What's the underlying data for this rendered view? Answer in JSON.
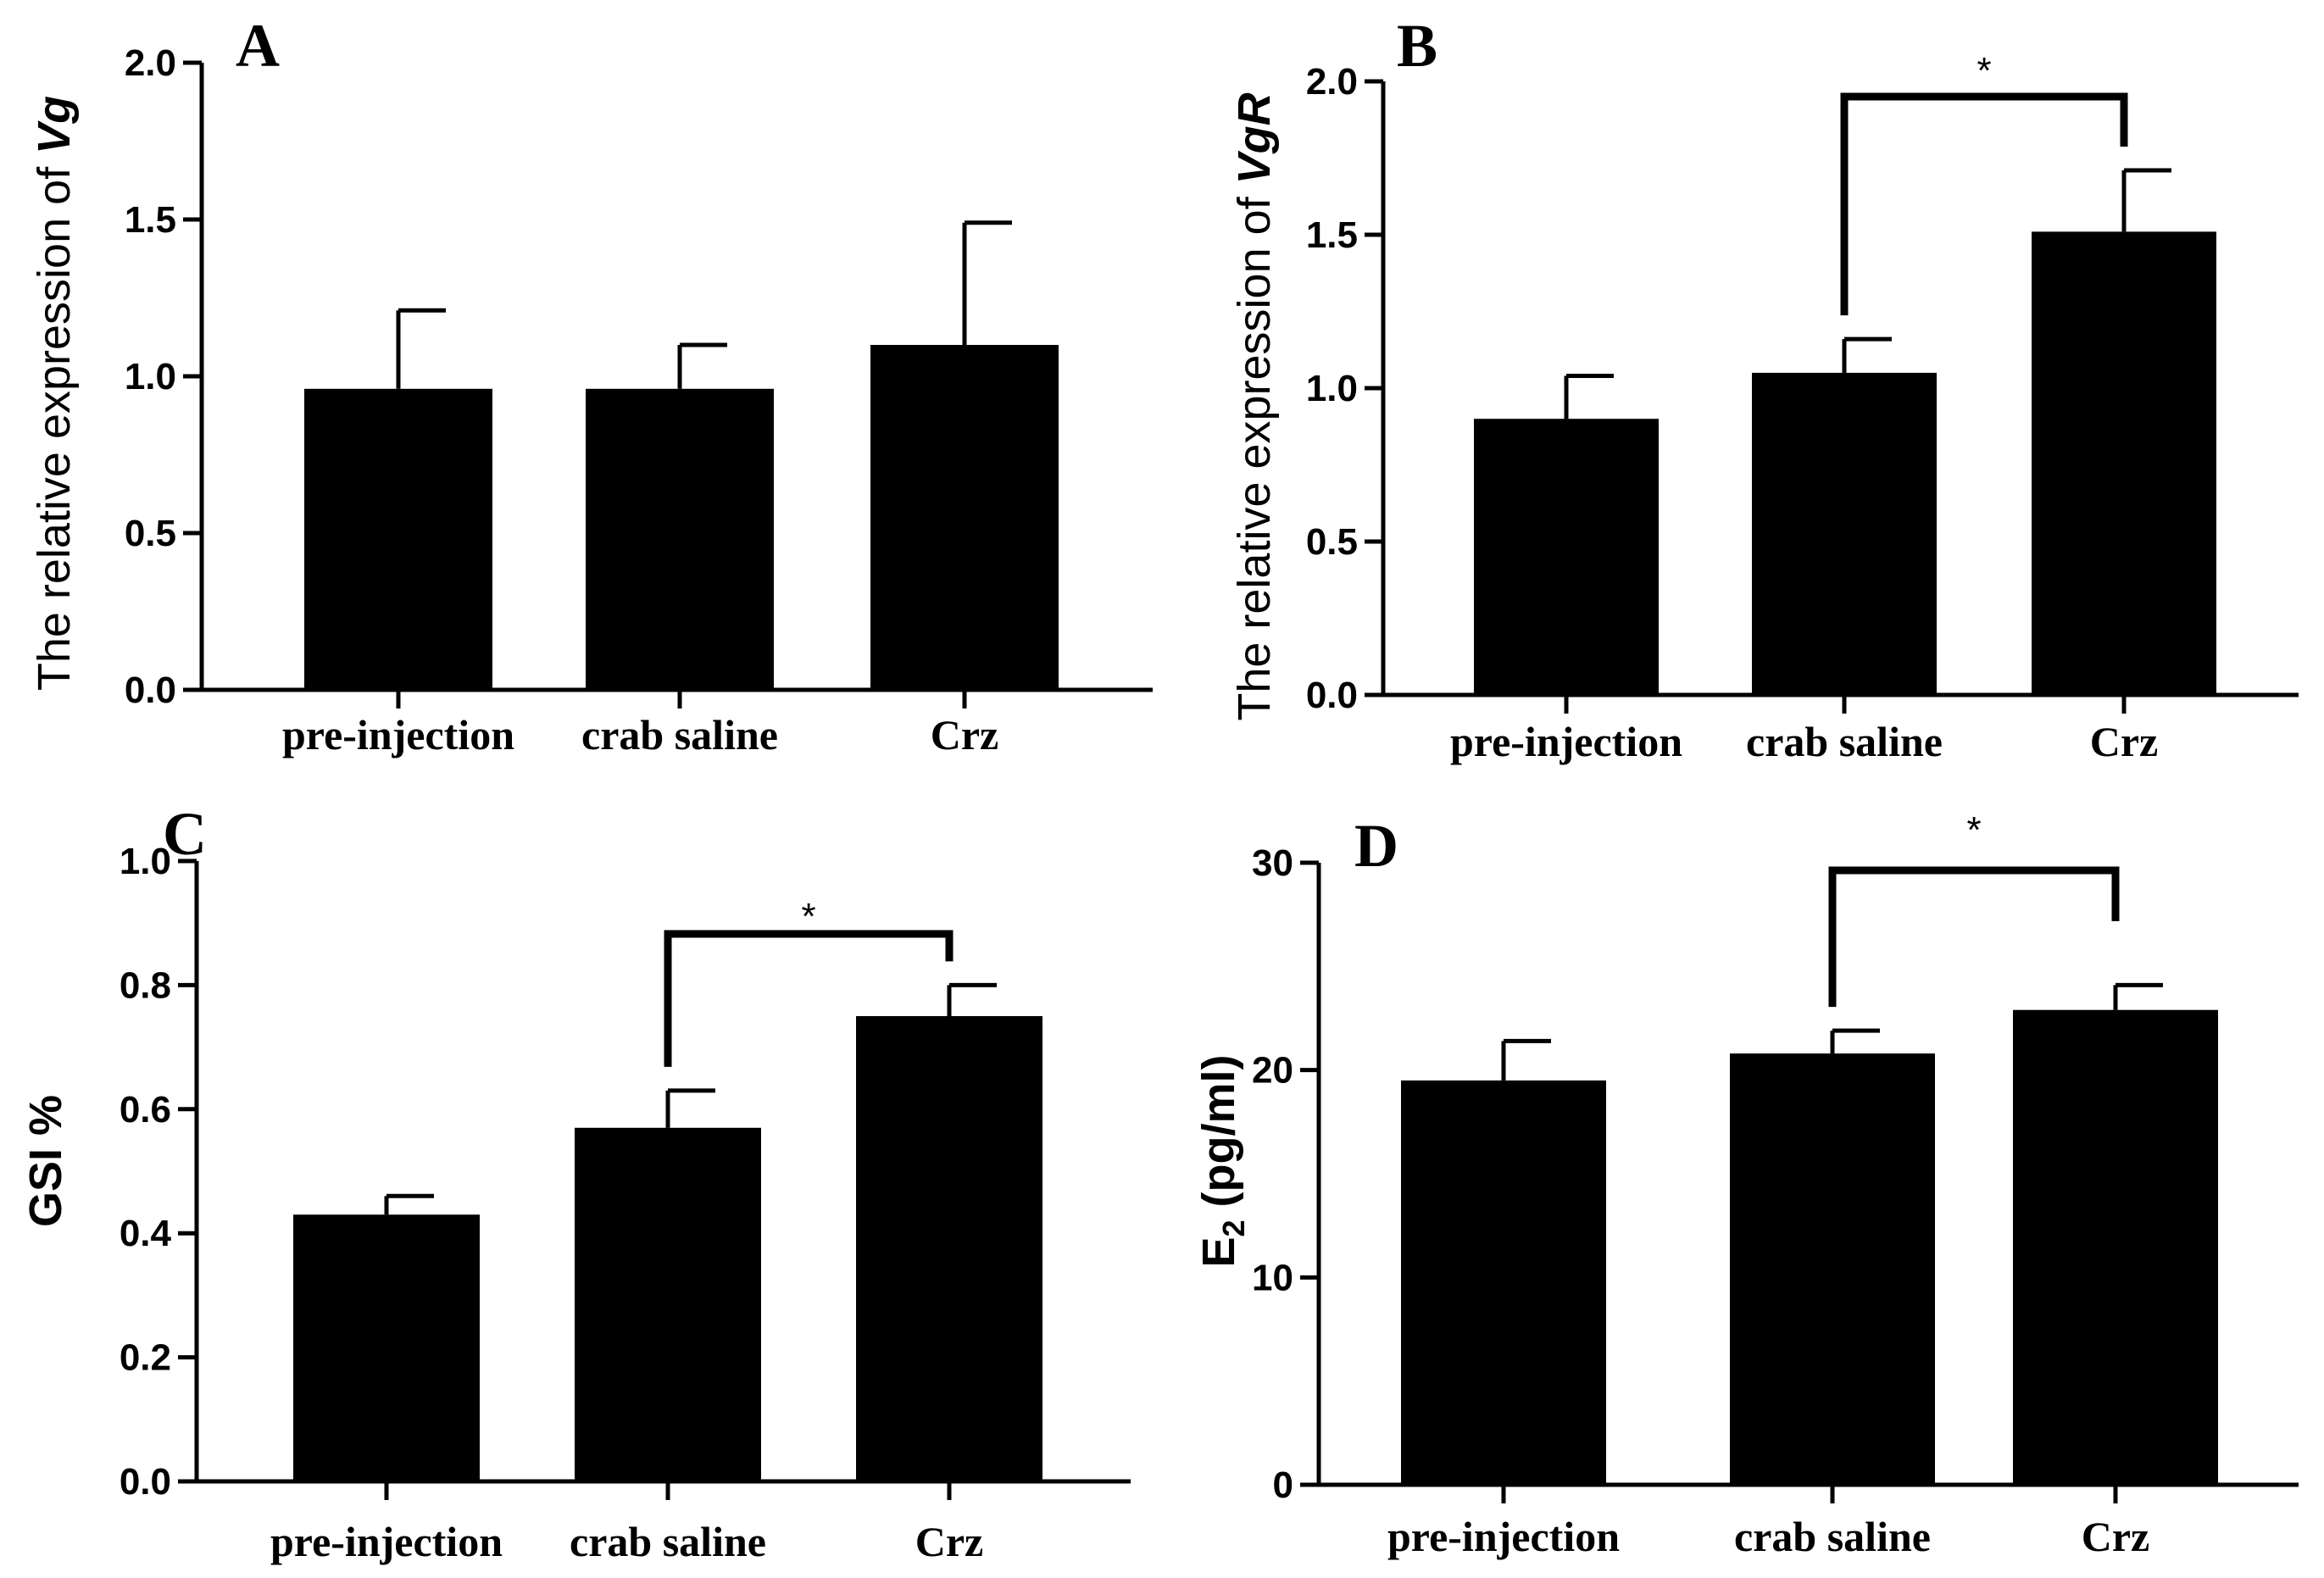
{
  "chart_data": [
    {
      "panel": "A",
      "type": "bar",
      "categories": [
        "pre-injection",
        "crab saline",
        "Crz"
      ],
      "values": [
        0.96,
        0.96,
        1.1
      ],
      "errors": [
        0.25,
        0.14,
        0.39
      ],
      "ylim": [
        0.0,
        2.0
      ],
      "yticks": [
        "0.0",
        "0.5",
        "1.0",
        "1.5",
        "2.0"
      ],
      "ytick_values": [
        0.0,
        0.5,
        1.0,
        1.5,
        2.0
      ],
      "ylabel_text": "The relative expression of ",
      "ylabel_italic": "Vg",
      "xlabel": "",
      "significance": []
    },
    {
      "panel": "B",
      "type": "bar",
      "categories": [
        "pre-injection",
        "crab saline",
        "Crz"
      ],
      "values": [
        0.9,
        1.05,
        1.51
      ],
      "errors": [
        0.14,
        0.11,
        0.2
      ],
      "ylim": [
        0.0,
        2.0
      ],
      "yticks": [
        "0.0",
        "0.5",
        "1.0",
        "1.5",
        "2.0"
      ],
      "ytick_values": [
        0.0,
        0.5,
        1.0,
        1.5,
        2.0
      ],
      "ylabel_text": "The relative expression of ",
      "ylabel_italic": "VgR",
      "xlabel": "",
      "significance": [
        {
          "from": 1,
          "to": 2,
          "label": "*"
        }
      ]
    },
    {
      "panel": "C",
      "type": "bar",
      "categories": [
        "pre-injection",
        "crab saline",
        "Crz"
      ],
      "values": [
        0.43,
        0.57,
        0.75
      ],
      "errors": [
        0.03,
        0.06,
        0.05
      ],
      "ylim": [
        0.0,
        1.0
      ],
      "yticks": [
        "0.0",
        "0.2",
        "0.4",
        "0.6",
        "0.8",
        "1.0"
      ],
      "ytick_values": [
        0.0,
        0.2,
        0.4,
        0.6,
        0.8,
        1.0
      ],
      "ylabel_text": "GSI %",
      "xlabel": "",
      "significance": [
        {
          "from": 1,
          "to": 2,
          "label": "*"
        }
      ]
    },
    {
      "panel": "D",
      "type": "bar",
      "categories": [
        "pre-injection",
        "crab saline",
        "Crz"
      ],
      "values": [
        19.5,
        20.8,
        22.9
      ],
      "errors": [
        1.9,
        1.1,
        1.2
      ],
      "ylim": [
        0,
        30
      ],
      "yticks": [
        "0",
        "10",
        "20",
        "30"
      ],
      "ytick_values": [
        0,
        10,
        20,
        30
      ],
      "ylabel_main": "E",
      "ylabel_sub": "2",
      "ylabel_rest": " (pg/ml)",
      "xlabel": "",
      "significance": [
        {
          "from": 1,
          "to": 2,
          "label": "*"
        }
      ]
    }
  ]
}
